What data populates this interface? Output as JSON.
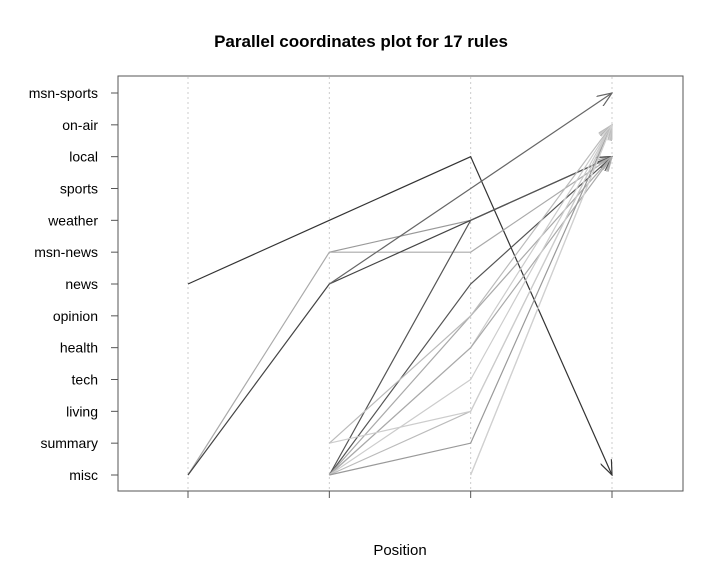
{
  "chart_data": {
    "type": "parallel-coordinates",
    "title": "Parallel coordinates plot for 17 rules",
    "xlabel": "Position",
    "ylabel": "",
    "x_positions": [
      1,
      2,
      3,
      4
    ],
    "x_tick_labels": [],
    "y_levels": [
      "misc",
      "summary",
      "living",
      "tech",
      "health",
      "opinion",
      "news",
      "msn-news",
      "weather",
      "sports",
      "local",
      "on-air",
      "msn-sports"
    ],
    "vertical_grid": true,
    "rules": [
      {
        "path": [
          "news",
          "weather",
          "local",
          "misc"
        ],
        "color": "#333333"
      },
      {
        "path": [
          null,
          "msn-news",
          "weather",
          "local"
        ],
        "color": "#999999"
      },
      {
        "path": [
          "misc",
          "msn-news",
          "msn-news",
          "local"
        ],
        "color": "#aaaaaa"
      },
      {
        "path": [
          "misc",
          "news",
          "weather",
          "local"
        ],
        "color": "#444444"
      },
      {
        "path": [
          null,
          "news",
          "sports",
          "msn-sports"
        ],
        "color": "#666666"
      },
      {
        "path": [
          null,
          "misc",
          "weather",
          "local"
        ],
        "color": "#555555"
      },
      {
        "path": [
          null,
          "misc",
          "news",
          "local"
        ],
        "color": "#555555"
      },
      {
        "path": [
          null,
          "misc",
          "opinion",
          "local"
        ],
        "color": "#aaaaaa"
      },
      {
        "path": [
          null,
          "misc",
          "health",
          "on-air"
        ],
        "color": "#cccccc"
      },
      {
        "path": [
          null,
          "misc",
          "health",
          "local"
        ],
        "color": "#aaaaaa"
      },
      {
        "path": [
          null,
          "misc",
          "tech",
          "on-air"
        ],
        "color": "#cccccc"
      },
      {
        "path": [
          null,
          "misc",
          "living",
          "on-air"
        ],
        "color": "#bbbbbb"
      },
      {
        "path": [
          null,
          "summary",
          "opinion",
          "on-air"
        ],
        "color": "#bbbbbb"
      },
      {
        "path": [
          null,
          "summary",
          "living",
          "on-air"
        ],
        "color": "#cccccc"
      },
      {
        "path": [
          null,
          "misc",
          "summary",
          "on-air"
        ],
        "color": "#999999"
      },
      {
        "path": [
          null,
          null,
          "misc",
          "on-air"
        ],
        "color": "#c8c8c8"
      },
      {
        "path": [
          null,
          null,
          "misc",
          "on-air"
        ],
        "color": "#d0d0d0"
      }
    ]
  }
}
